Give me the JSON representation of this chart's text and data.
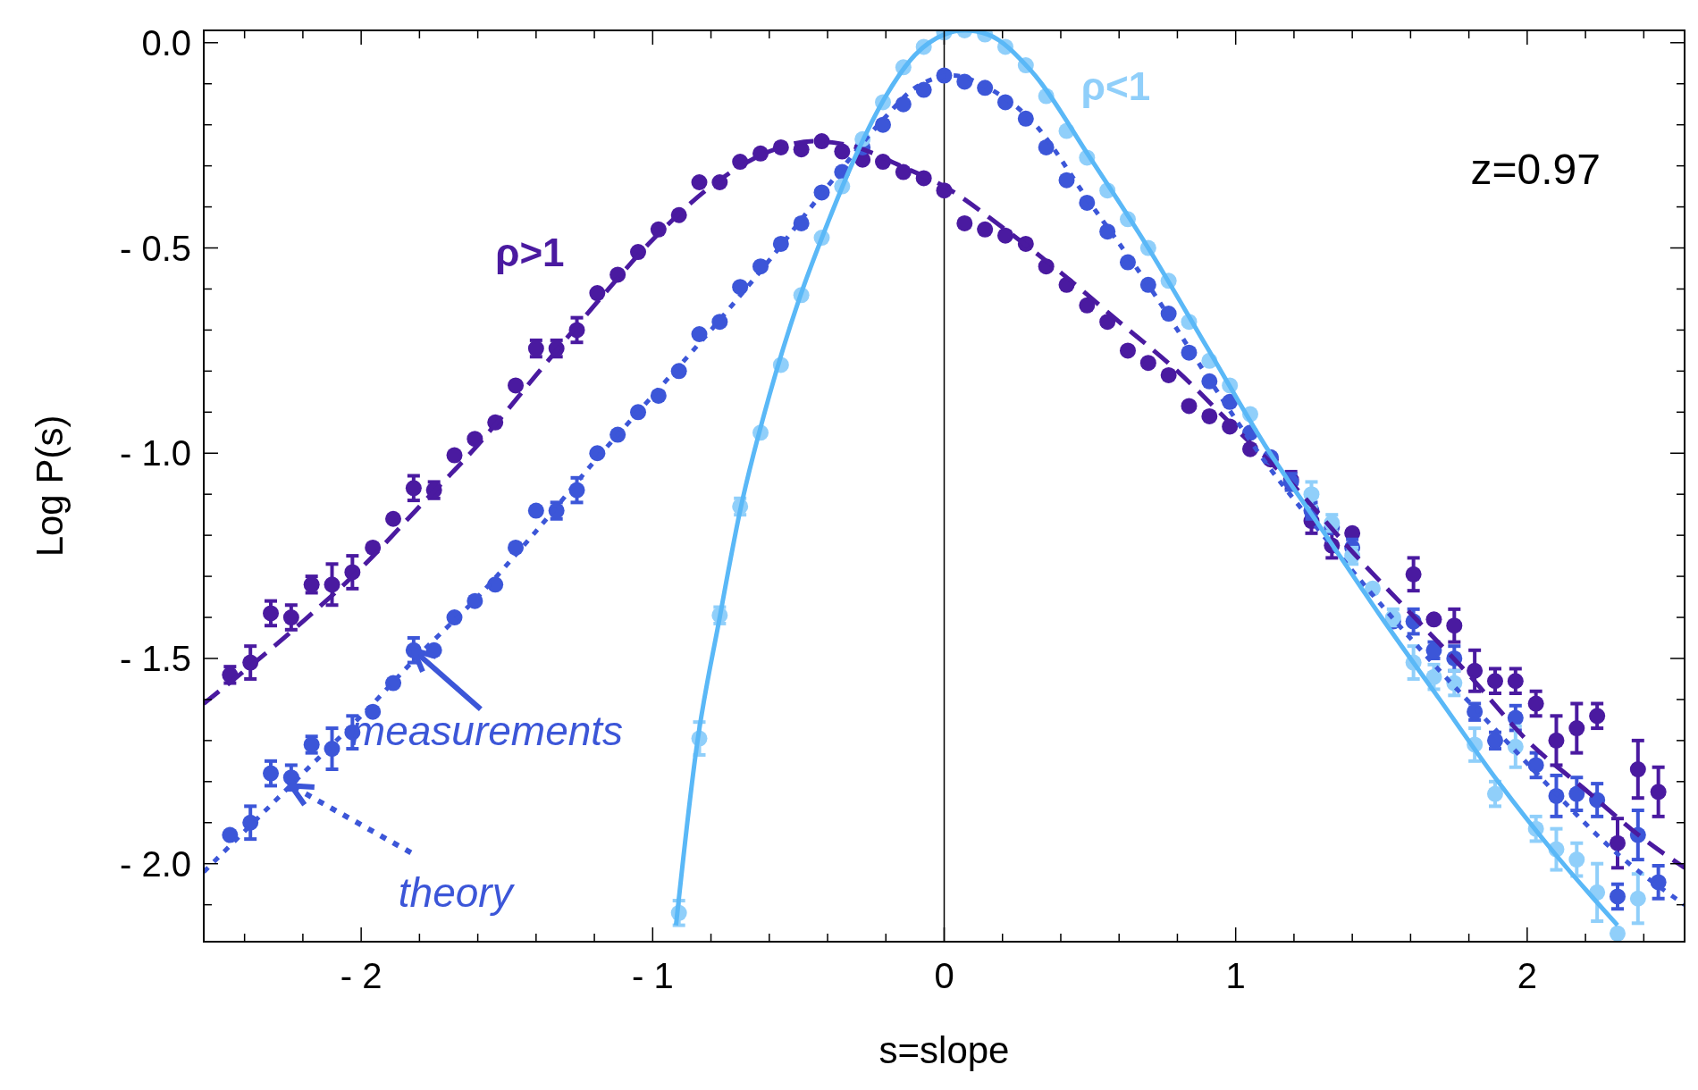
{
  "chart_data": {
    "type": "scatter",
    "xlabel": "s=slope",
    "ylabel": "Log P(s)",
    "xlim": [
      -2.54,
      2.54
    ],
    "ylim": [
      -2.19,
      0.03
    ],
    "xticks": [
      {
        "value": -2.4,
        "label": null
      },
      {
        "value": -2.2,
        "label": null
      },
      {
        "value": -2,
        "label": "- 2"
      },
      {
        "value": -1.8,
        "label": null
      },
      {
        "value": -1.6,
        "label": null
      },
      {
        "value": -1.4,
        "label": null
      },
      {
        "value": -1.2,
        "label": null
      },
      {
        "value": -1,
        "label": "- 1"
      },
      {
        "value": -0.8,
        "label": null
      },
      {
        "value": -0.6,
        "label": null
      },
      {
        "value": -0.4,
        "label": null
      },
      {
        "value": -0.2,
        "label": null
      },
      0,
      {
        "value": 0.2,
        "label": null
      },
      {
        "value": 0.4,
        "label": null
      },
      {
        "value": 0.6,
        "label": null
      },
      {
        "value": 0.8,
        "label": null
      },
      1,
      {
        "value": 1.2,
        "label": null
      },
      {
        "value": 1.4,
        "label": null
      },
      {
        "value": 1.6,
        "label": null
      },
      {
        "value": 1.8,
        "label": null
      },
      2,
      {
        "value": 2.2,
        "label": null
      },
      {
        "value": 2.4,
        "label": null
      }
    ],
    "yticks": [
      {
        "value": 0,
        "label": "0.0"
      },
      {
        "value": -0.1,
        "label": null
      },
      {
        "value": -0.2,
        "label": null
      },
      {
        "value": -0.3,
        "label": null
      },
      {
        "value": -0.4,
        "label": null
      },
      {
        "value": -0.5,
        "label": "- 0.5"
      },
      {
        "value": -0.6,
        "label": null
      },
      {
        "value": -0.7,
        "label": null
      },
      {
        "value": -0.8,
        "label": null
      },
      {
        "value": -0.9,
        "label": null
      },
      {
        "value": -1,
        "label": "- 1.0"
      },
      {
        "value": -1.1,
        "label": null
      },
      {
        "value": -1.2,
        "label": null
      },
      {
        "value": -1.3,
        "label": null
      },
      {
        "value": -1.4,
        "label": null
      },
      {
        "value": -1.5,
        "label": "- 1.5"
      },
      {
        "value": -1.6,
        "label": null
      },
      {
        "value": -1.7,
        "label": null
      },
      {
        "value": -1.8,
        "label": null
      },
      {
        "value": -1.9,
        "label": null
      },
      {
        "value": -2,
        "label": "- 2.0"
      },
      {
        "value": -2.1,
        "label": null
      }
    ],
    "grid": false,
    "legend": false,
    "marker": "circle",
    "ref_lines": [
      {
        "axis": "x",
        "value": 0,
        "color": "#000000"
      }
    ],
    "annotations": [
      "z=0.97",
      {
        "text": "measurements",
        "x": -1.82,
        "y": -1.48
      },
      {
        "text": "theory",
        "x": -2.24,
        "y": -1.81
      }
    ],
    "series": [
      {
        "name": "ρ>1",
        "color": "#4a1aa0",
        "x": [
          -2.45,
          -2.38,
          -2.31,
          -2.24,
          -2.17,
          -2.1,
          -2.03,
          -1.96,
          -1.89,
          -1.82,
          -1.75,
          -1.68,
          -1.61,
          -1.54,
          -1.47,
          -1.4,
          -1.33,
          -1.26,
          -1.19,
          -1.12,
          -1.05,
          -0.98,
          -0.91,
          -0.84,
          -0.77,
          -0.7,
          -0.63,
          -0.56,
          -0.49,
          -0.42,
          -0.35,
          -0.28,
          -0.21,
          -0.14,
          -0.07,
          0,
          0.07,
          0.14,
          0.21,
          0.28,
          0.35,
          0.42,
          0.49,
          0.56,
          0.63,
          0.7,
          0.77,
          0.84,
          0.91,
          0.98,
          1.05,
          1.12,
          1.19,
          1.26,
          1.33,
          1.4,
          1.47,
          1.54,
          1.61,
          1.68,
          1.75,
          1.82,
          1.89,
          1.96,
          2.03,
          2.1,
          2.17,
          2.24,
          2.31,
          2.38,
          2.45
        ],
        "values": [
          -1.54,
          -1.51,
          -1.39,
          -1.4,
          -1.32,
          -1.32,
          -1.29,
          -1.23,
          -1.16,
          -1.085,
          -1.09,
          -1.005,
          -0.965,
          -0.925,
          -0.835,
          -0.745,
          -0.745,
          -0.7,
          -0.61,
          -0.565,
          -0.51,
          -0.455,
          -0.42,
          -0.34,
          -0.34,
          -0.29,
          -0.27,
          -0.255,
          -0.26,
          -0.24,
          -0.265,
          -0.285,
          -0.29,
          -0.315,
          -0.33,
          -0.36,
          -0.44,
          -0.455,
          -0.47,
          -0.49,
          -0.545,
          -0.59,
          -0.64,
          -0.68,
          -0.75,
          -0.78,
          -0.81,
          -0.885,
          -0.91,
          -0.935,
          -0.99,
          -1.015,
          -1.065,
          -1.165,
          -1.225,
          -1.195,
          null,
          null,
          -1.295,
          -1.405,
          -1.42,
          -1.53,
          -1.555,
          -1.555,
          -1.61,
          -1.7,
          -1.67,
          -1.64,
          -1.95,
          -1.77,
          -1.825
        ],
        "errors": [
          0.02,
          0.04,
          0.03,
          0.03,
          0.02,
          0.05,
          0.04,
          null,
          null,
          0.03,
          0.02,
          null,
          null,
          null,
          null,
          0.02,
          0.02,
          0.03,
          null,
          null,
          null,
          null,
          null,
          null,
          null,
          null,
          null,
          null,
          null,
          null,
          null,
          null,
          null,
          null,
          null,
          null,
          null,
          null,
          null,
          null,
          null,
          null,
          null,
          null,
          null,
          null,
          null,
          null,
          null,
          null,
          null,
          null,
          0.02,
          0.03,
          0.03,
          null,
          null,
          null,
          0.04,
          null,
          0.04,
          0.05,
          0.03,
          0.03,
          0.03,
          0.06,
          0.06,
          0.03,
          0.06,
          0.07,
          0.06
        ]
      },
      {
        "color": "#3c56d8",
        "x": [
          -2.45,
          -2.38,
          -2.31,
          -2.24,
          -2.17,
          -2.1,
          -2.03,
          -1.96,
          -1.89,
          -1.82,
          -1.75,
          -1.68,
          -1.61,
          -1.54,
          -1.47,
          -1.4,
          -1.33,
          -1.26,
          -1.19,
          -1.12,
          -1.05,
          -0.98,
          -0.91,
          -0.84,
          -0.77,
          -0.7,
          -0.63,
          -0.56,
          -0.49,
          -0.42,
          -0.35,
          -0.28,
          -0.21,
          -0.14,
          -0.07,
          0,
          0.07,
          0.14,
          0.21,
          0.28,
          0.35,
          0.42,
          0.49,
          0.56,
          0.63,
          0.7,
          0.77,
          0.84,
          0.91,
          0.98,
          1.05,
          1.12,
          1.19,
          1.26,
          1.33,
          1.4,
          1.47,
          1.54,
          1.61,
          1.68,
          1.75,
          1.82,
          1.89,
          1.96,
          2.03,
          2.1,
          2.17,
          2.24,
          2.31,
          2.38,
          2.45
        ],
        "values": [
          -1.93,
          -1.9,
          -1.78,
          -1.79,
          -1.71,
          -1.72,
          -1.68,
          -1.63,
          -1.56,
          -1.48,
          -1.48,
          -1.4,
          -1.36,
          -1.32,
          -1.23,
          -1.14,
          -1.14,
          -1.09,
          -1,
          -0.955,
          -0.9,
          -0.86,
          -0.8,
          -0.71,
          -0.68,
          -0.595,
          -0.545,
          -0.49,
          -0.44,
          -0.365,
          -0.315,
          -0.255,
          -0.2,
          -0.15,
          -0.115,
          -0.08,
          -0.095,
          -0.11,
          -0.145,
          -0.185,
          -0.255,
          -0.335,
          -0.39,
          -0.46,
          -0.535,
          -0.59,
          -0.66,
          -0.755,
          -0.825,
          -0.875,
          -0.95,
          -1.01,
          -1.07,
          -1.14,
          -1.18,
          -1.23,
          null,
          -1.41,
          -1.41,
          -1.48,
          -1.5,
          -1.63,
          -1.7,
          -1.645,
          -1.76,
          -1.835,
          -1.83,
          -1.845,
          -2.08,
          -1.93,
          -2.045
        ],
        "errors": [
          null,
          0.04,
          0.03,
          0.03,
          0.02,
          0.05,
          0.04,
          null,
          null,
          0.03,
          null,
          null,
          null,
          null,
          null,
          null,
          0.02,
          0.03,
          null,
          null,
          null,
          null,
          null,
          null,
          null,
          null,
          null,
          null,
          null,
          null,
          null,
          null,
          null,
          null,
          null,
          null,
          null,
          null,
          null,
          null,
          null,
          null,
          null,
          null,
          null,
          null,
          null,
          null,
          null,
          null,
          null,
          null,
          0.02,
          0.02,
          null,
          0.02,
          null,
          null,
          0.03,
          0.02,
          0.03,
          0.02,
          0.02,
          0.03,
          0.03,
          0.05,
          0.04,
          0.04,
          0.03,
          0.06,
          0.04
        ]
      },
      {
        "name": "ρ<1",
        "color": "#90cffa",
        "x": [
          -0.91,
          -0.84,
          -0.77,
          -0.7,
          -0.63,
          -0.56,
          -0.49,
          -0.42,
          -0.35,
          -0.28,
          -0.21,
          -0.14,
          -0.07,
          0,
          0.07,
          0.14,
          0.21,
          0.28,
          0.35,
          0.42,
          0.49,
          0.56,
          0.63,
          0.7,
          0.77,
          0.84,
          0.91,
          0.98,
          1.05,
          1.12,
          1.19,
          1.26,
          1.33,
          1.4,
          1.47,
          1.54,
          1.61,
          1.68,
          1.75,
          1.82,
          1.89,
          1.96,
          2.03,
          2.1,
          2.17,
          2.24,
          2.31,
          2.38
        ],
        "values": [
          -2.12,
          -1.695,
          -1.395,
          -1.13,
          -0.95,
          -0.785,
          -0.615,
          -0.475,
          -0.35,
          -0.235,
          -0.145,
          -0.06,
          -0.01,
          0.025,
          0.03,
          0.02,
          -0.01,
          -0.055,
          -0.13,
          -0.215,
          -0.28,
          -0.36,
          -0.43,
          -0.5,
          -0.58,
          -0.68,
          -0.775,
          -0.835,
          -0.905,
          null,
          null,
          -1.1,
          -1.17,
          -1.25,
          -1.33,
          -1.4,
          -1.51,
          -1.545,
          -1.56,
          -1.71,
          -1.83,
          -1.715,
          -1.915,
          -1.965,
          -1.99,
          -2.07,
          -2.17,
          -2.085
        ],
        "errors": [
          0.03,
          0.04,
          0.02,
          0.02,
          null,
          null,
          null,
          null,
          null,
          null,
          null,
          null,
          null,
          null,
          null,
          null,
          null,
          null,
          null,
          null,
          null,
          null,
          null,
          null,
          null,
          null,
          null,
          null,
          null,
          null,
          null,
          0.03,
          0.02,
          0.02,
          null,
          0.02,
          0.04,
          0.03,
          0.03,
          0.04,
          0.03,
          0.05,
          0.03,
          0.05,
          0.04,
          0.07,
          null,
          0.06
        ]
      },
      {
        "type": "line",
        "line_style": "dashed",
        "marker": "none",
        "color": "#4a1aa0",
        "x": [
          -2.54,
          -2.2,
          -2,
          -1.8,
          -1.6,
          -1.4,
          -1.2,
          -1,
          -0.8,
          -0.6,
          -0.45,
          -0.3,
          -0.15,
          0,
          0.2,
          0.4,
          0.6,
          0.8,
          1,
          1.2,
          1.4,
          1.6,
          1.8,
          2,
          2.2,
          2.4,
          2.54
        ],
        "values": [
          -1.61,
          -1.41,
          -1.28,
          -1.13,
          -0.98,
          -0.81,
          -0.64,
          -0.48,
          -0.35,
          -0.265,
          -0.24,
          -0.255,
          -0.3,
          -0.35,
          -0.45,
          -0.56,
          -0.68,
          -0.8,
          -0.94,
          -1.08,
          -1.24,
          -1.39,
          -1.54,
          -1.7,
          -1.82,
          -1.94,
          -2.01
        ]
      },
      {
        "type": "line",
        "line_style": "dotted",
        "marker": "none",
        "color": "#3c56d8",
        "x": [
          -2.54,
          -2.2,
          -2,
          -1.8,
          -1.6,
          -1.4,
          -1.2,
          -1,
          -0.8,
          -0.6,
          -0.4,
          -0.2,
          -0.1,
          0.03,
          0.15,
          0.3,
          0.5,
          0.7,
          0.9,
          1.1,
          1.3,
          1.5,
          1.7,
          1.9,
          2.1,
          2.3,
          2.54
        ],
        "values": [
          -2.02,
          -1.78,
          -1.64,
          -1.49,
          -1.35,
          -1.19,
          -1.02,
          -0.86,
          -0.7,
          -0.53,
          -0.35,
          -0.18,
          -0.11,
          -0.08,
          -0.11,
          -0.19,
          -0.39,
          -0.59,
          -0.81,
          -1.02,
          -1.2,
          -1.37,
          -1.53,
          -1.68,
          -1.83,
          -1.97,
          -2.1
        ]
      },
      {
        "type": "line",
        "line_style": "solid",
        "marker": "none",
        "color": "#5ab8f7",
        "x": [
          -0.92,
          -0.85,
          -0.77,
          -0.7,
          -0.6,
          -0.5,
          -0.4,
          -0.3,
          -0.2,
          -0.1,
          0,
          0.07,
          0.15,
          0.3,
          0.5,
          0.7,
          0.9,
          1.1,
          1.3,
          1.5,
          1.7,
          1.9,
          2.1,
          2.31
        ],
        "values": [
          -2.15,
          -1.72,
          -1.4,
          -1.14,
          -0.86,
          -0.63,
          -0.44,
          -0.27,
          -0.13,
          -0.03,
          0.02,
          0.03,
          0.02,
          -0.07,
          -0.28,
          -0.5,
          -0.74,
          -0.98,
          -1.19,
          -1.4,
          -1.6,
          -1.8,
          -1.98,
          -2.15
        ]
      }
    ]
  }
}
